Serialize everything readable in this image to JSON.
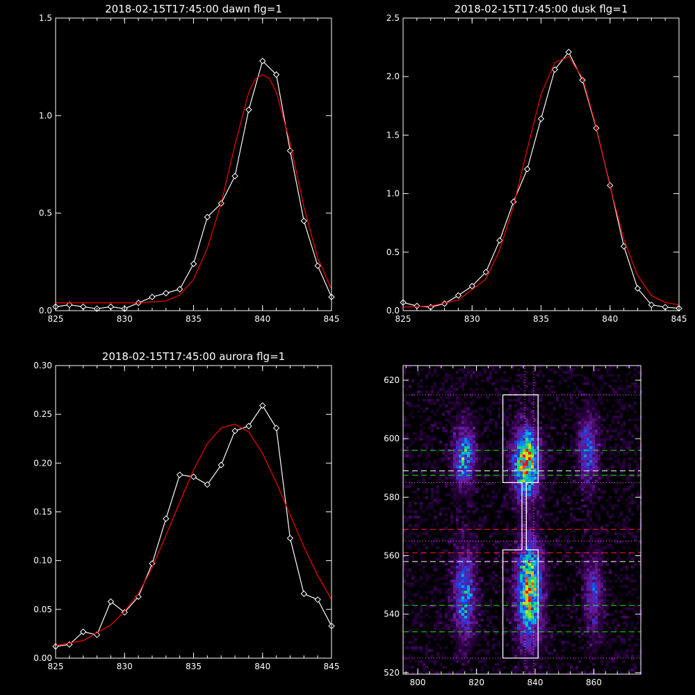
{
  "chart_data": [
    {
      "type": "line",
      "title": "2018-02-15T17:45:00 dawn flg=1",
      "xlim": [
        825,
        845
      ],
      "ylim": [
        0,
        1.5
      ],
      "xticks": [
        "825",
        "830",
        "835",
        "840",
        "845"
      ],
      "yticks": [
        "0.0",
        "0.5",
        "1.0",
        "1.5"
      ],
      "series": [
        {
          "role": "data",
          "color": "#ffffff",
          "marker": "diamond",
          "x": [
            825,
            826,
            827,
            828,
            829,
            830,
            831,
            832,
            833,
            834,
            835,
            836,
            837,
            838,
            839,
            840,
            841,
            842,
            843,
            844,
            845
          ],
          "y": [
            0.02,
            0.03,
            0.02,
            0.01,
            0.02,
            0.01,
            0.04,
            0.07,
            0.09,
            0.11,
            0.24,
            0.48,
            0.55,
            0.69,
            1.03,
            1.28,
            1.21,
            0.82,
            0.46,
            0.23,
            0.07
          ]
        },
        {
          "role": "fit",
          "color": "#ff0000",
          "x": [
            825,
            828,
            831,
            833,
            834,
            835,
            836,
            837,
            838,
            839,
            839.5,
            840,
            840.5,
            841,
            842,
            843,
            844,
            845
          ],
          "y": [
            0.04,
            0.04,
            0.04,
            0.05,
            0.08,
            0.16,
            0.32,
            0.55,
            0.85,
            1.12,
            1.19,
            1.21,
            1.19,
            1.12,
            0.86,
            0.53,
            0.27,
            0.11
          ]
        }
      ]
    },
    {
      "type": "line",
      "title": "2018-02-15T17:45:00 dusk flg=1",
      "xlim": [
        825,
        845
      ],
      "ylim": [
        0,
        2.5
      ],
      "xticks": [
        "825",
        "830",
        "835",
        "840",
        "845"
      ],
      "yticks": [
        "0.0",
        "0.5",
        "1.0",
        "1.5",
        "2.0",
        "2.5"
      ],
      "series": [
        {
          "role": "data",
          "color": "#ffffff",
          "marker": "diamond",
          "x": [
            825,
            826,
            827,
            828,
            829,
            830,
            831,
            832,
            833,
            834,
            835,
            836,
            837,
            838,
            839,
            840,
            841,
            842,
            843,
            844,
            845
          ],
          "y": [
            0.07,
            0.04,
            0.03,
            0.06,
            0.13,
            0.21,
            0.33,
            0.6,
            0.93,
            1.21,
            1.64,
            2.06,
            2.21,
            1.97,
            1.56,
            1.07,
            0.55,
            0.19,
            0.05,
            0.03,
            0.02
          ]
        },
        {
          "role": "fit",
          "color": "#ff0000",
          "x": [
            825,
            827,
            829,
            831,
            832,
            833,
            834,
            835,
            836,
            837,
            838,
            839,
            840,
            841,
            842,
            843,
            844,
            845
          ],
          "y": [
            0.03,
            0.04,
            0.09,
            0.27,
            0.52,
            0.89,
            1.38,
            1.85,
            2.12,
            2.17,
            1.99,
            1.57,
            1.06,
            0.61,
            0.3,
            0.13,
            0.07,
            0.05
          ]
        }
      ]
    },
    {
      "type": "line",
      "title": "2018-02-15T17:45:00 aurora flg=1",
      "xlim": [
        825,
        845
      ],
      "ylim": [
        0,
        0.3
      ],
      "xticks": [
        "825",
        "830",
        "835",
        "840",
        "845"
      ],
      "yticks": [
        "0.00",
        "0.05",
        "0.10",
        "0.15",
        "0.20",
        "0.25",
        "0.30"
      ],
      "series": [
        {
          "role": "data",
          "color": "#ffffff",
          "marker": "diamond",
          "x": [
            825,
            826,
            827,
            828,
            829,
            830,
            831,
            832,
            833,
            834,
            835,
            836,
            837,
            838,
            839,
            840,
            841,
            842,
            843,
            844,
            845
          ],
          "y": [
            0.012,
            0.014,
            0.027,
            0.024,
            0.058,
            0.047,
            0.063,
            0.097,
            0.143,
            0.188,
            0.186,
            0.178,
            0.198,
            0.233,
            0.238,
            0.259,
            0.236,
            0.123,
            0.066,
            0.06,
            0.033
          ]
        },
        {
          "role": "fit",
          "color": "#ff0000",
          "x": [
            825,
            827,
            829,
            830,
            831,
            832,
            833,
            834,
            835,
            836,
            837,
            838,
            839,
            840,
            841,
            842,
            843,
            844,
            845
          ],
          "y": [
            0.013,
            0.018,
            0.034,
            0.048,
            0.066,
            0.093,
            0.126,
            0.16,
            0.193,
            0.22,
            0.236,
            0.24,
            0.232,
            0.21,
            0.18,
            0.147,
            0.114,
            0.085,
            0.06
          ]
        }
      ]
    },
    {
      "type": "heatmap",
      "title": "",
      "xlim": [
        795,
        876
      ],
      "ylim": [
        519.5,
        625
      ],
      "xticks": [
        "800",
        "820",
        "840",
        "860"
      ],
      "yticks": [
        "520",
        "540",
        "560",
        "580",
        "600",
        "620"
      ],
      "blobs": [
        {
          "cx": 816,
          "cy": 594,
          "sx": 2.6,
          "sy": 7,
          "amp": 0.55
        },
        {
          "cx": 837,
          "cy": 592,
          "sx": 3.0,
          "sy": 8,
          "amp": 0.9
        },
        {
          "cx": 858,
          "cy": 596,
          "sx": 2.4,
          "sy": 8,
          "amp": 0.42
        },
        {
          "cx": 816,
          "cy": 547,
          "sx": 2.6,
          "sy": 11,
          "amp": 0.48
        },
        {
          "cx": 838,
          "cy": 548,
          "sx": 3.0,
          "sy": 12,
          "amp": 0.78
        },
        {
          "cx": 860,
          "cy": 547,
          "sx": 2.3,
          "sy": 10,
          "amp": 0.33
        }
      ],
      "hlines": [
        {
          "y": 615,
          "color": "#ff66ff",
          "style": "dotted"
        },
        {
          "y": 596,
          "color": "#22ee22",
          "style": "dashed"
        },
        {
          "y": 589,
          "color": "#ffffff",
          "style": "dashed"
        },
        {
          "y": 587.5,
          "color": "#22ee22",
          "style": "dashed"
        },
        {
          "y": 585,
          "color": "#ff66ff",
          "style": "dotted"
        },
        {
          "y": 569,
          "color": "#ff2020",
          "style": "dashed"
        },
        {
          "y": 565,
          "color": "#ff66ff",
          "style": "dotted"
        },
        {
          "y": 561,
          "color": "#ff2020",
          "style": "dashed"
        },
        {
          "y": 558,
          "color": "#ffffff",
          "style": "dashed"
        },
        {
          "y": 543,
          "color": "#22ee22",
          "style": "dashed"
        },
        {
          "y": 534,
          "color": "#22ee22",
          "style": "dashed"
        },
        {
          "y": 525,
          "color": "#ff66ff",
          "style": "dotted"
        }
      ],
      "vlines": [
        {
          "x": 836.5,
          "color": "#ff66ff",
          "style": "dotted"
        },
        {
          "x": 839.5,
          "color": "#ff66ff",
          "style": "dotted"
        }
      ],
      "outline": [
        [
          829,
          615
        ],
        [
          841,
          615
        ],
        [
          841,
          585
        ],
        [
          837,
          585
        ],
        [
          837,
          562
        ],
        [
          841,
          562
        ],
        [
          841,
          525
        ],
        [
          829,
          525
        ],
        [
          829,
          562
        ],
        [
          835.5,
          562
        ],
        [
          835.5,
          585
        ],
        [
          829,
          585
        ],
        [
          829,
          615
        ]
      ]
    }
  ]
}
